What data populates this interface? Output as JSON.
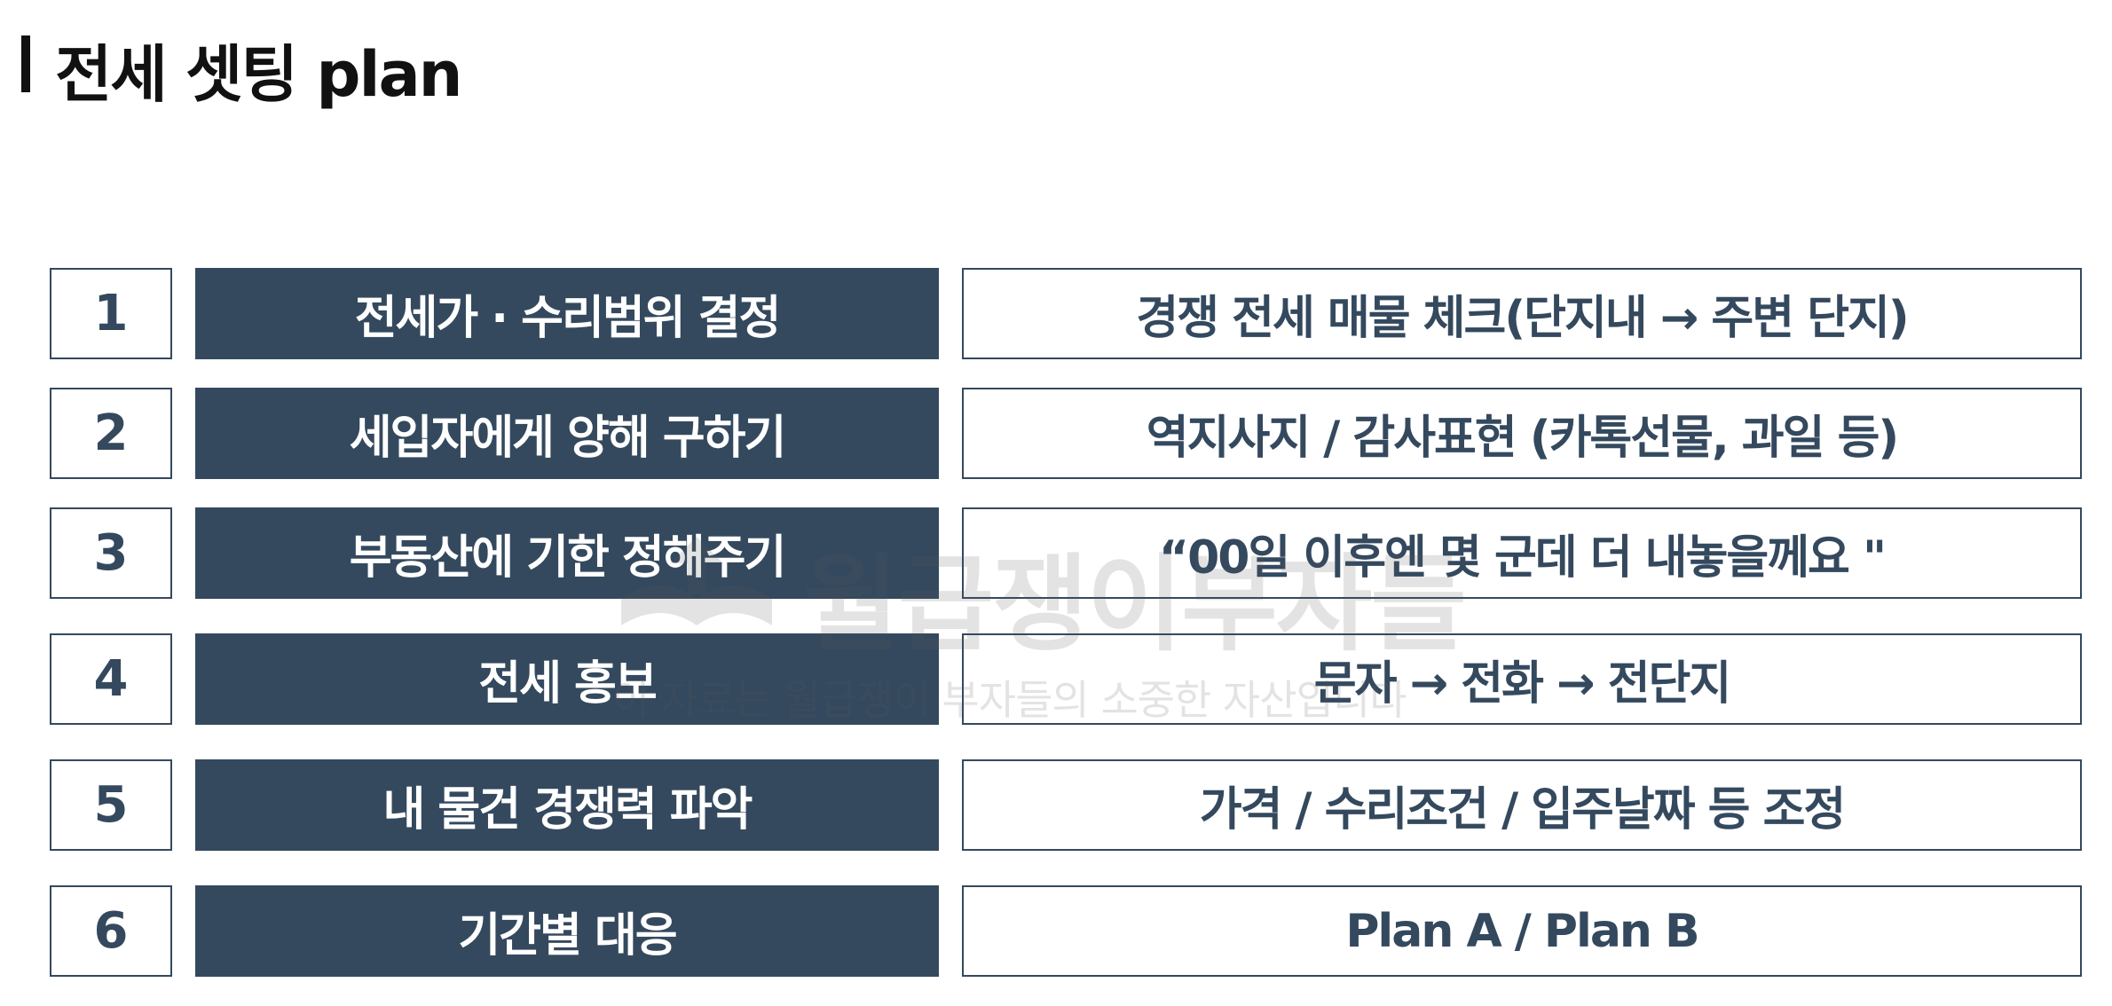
{
  "title": "전세 셋팅 plan",
  "rows": [
    {
      "num": "1",
      "action": "전세가 · 수리범위 결정",
      "detail": "경쟁 전세 매물 체크(단지내 → 주변 단지)"
    },
    {
      "num": "2",
      "action": "세입자에게 양해 구하기",
      "detail": "역지사지 / 감사표현 (카톡선물, 과일 등)"
    },
    {
      "num": "3",
      "action": "부동산에 기한 정해주기",
      "detail": "“00일 이후엔 몇 군데 더 내놓을께요 \""
    },
    {
      "num": "4",
      "action": "전세 홍보",
      "detail": "문자 → 전화 → 전단지"
    },
    {
      "num": "5",
      "action": "내 물건 경쟁력 파악",
      "detail": "가격 / 수리조건 / 입주날짜 등 조정"
    },
    {
      "num": "6",
      "action": "기간별 대응",
      "detail": "Plan A / Plan B"
    }
  ],
  "watermark": {
    "main": "월급쟁이부자들",
    "sub": "이 자료는 월급쟁이 부자들의 소중한 자산입니다"
  },
  "colors": {
    "primary": "#34495e",
    "title": "#111111",
    "background": "#ffffff"
  }
}
